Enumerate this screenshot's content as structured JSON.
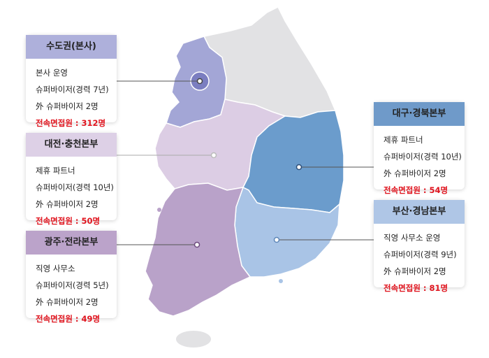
{
  "regions": [
    {
      "id": "sudogwon",
      "title": "수도권(본사)",
      "lines": [
        "본사 운영",
        "슈퍼바이저(경력 7년)",
        "外 슈퍼바이저 2명"
      ],
      "highlight": "전속면접원 : 312명",
      "header_color": "#aeb0db",
      "fill_color": "#a3a6d6"
    },
    {
      "id": "daejeon-chungcheong",
      "title": "대전·충천본부",
      "lines": [
        "제휴 파트너",
        "슈퍼바이저(경력 10년)",
        "外 슈퍼바이저 2명"
      ],
      "highlight": "전속면접원 : 50명",
      "header_color": "#ddd0e6",
      "fill_color": "#dccde4"
    },
    {
      "id": "gwangju-jeolla",
      "title": "광주·전라본부",
      "lines": [
        "직영 사무소",
        "슈퍼바이저(경력 5년)",
        "外 슈퍼바이저 2명"
      ],
      "highlight": "전속면접원 : 49명",
      "header_color": "#bba3ca",
      "fill_color": "#b9a2c9"
    },
    {
      "id": "daegu-gyeongbuk",
      "title": "대구·경북본부",
      "lines": [
        "제휴 파트너",
        "슈퍼바이저(경력 10년)",
        "外 슈퍼바이저 2명"
      ],
      "highlight": "전속면접원 : 54명",
      "header_color": "#6f9ac9",
      "fill_color": "#6b9ccc"
    },
    {
      "id": "busan-gyeongnam",
      "title": "부산·경남본부",
      "lines": [
        "직영 사무소 운영",
        "슈퍼바이저(경력 9년)",
        "外 슈퍼바이저 2명"
      ],
      "highlight": "전속면접원 : 81명",
      "header_color": "#afc6e6",
      "fill_color": "#a9c4e6"
    }
  ],
  "colors": {
    "gangwon_fill": "#e2e2e4",
    "highlight_text": "#e0141e",
    "leader_line": "#555555"
  }
}
